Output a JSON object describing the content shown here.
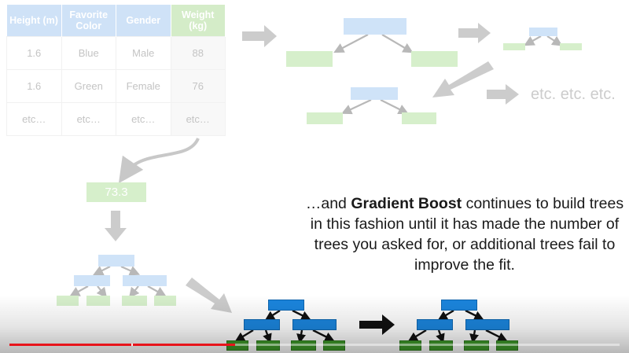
{
  "table": {
    "headers": [
      "Height (m)",
      "Favorite Color",
      "Gender",
      "Weight (kg)"
    ],
    "rows": [
      [
        "1.6",
        "Blue",
        "Male",
        "88"
      ],
      [
        "1.6",
        "Green",
        "Female",
        "76"
      ],
      [
        "etc…",
        "etc…",
        "etc…",
        "etc…"
      ]
    ]
  },
  "etc_label": "etc. etc. etc.",
  "initial_prediction": "73.3",
  "description": {
    "before": "…and ",
    "bold": "Gradient Boost",
    "after": " continues to build trees in this fashion until it has made the number of trees you asked for, or additional trees fail to improve the fit."
  },
  "player": {
    "progress": 0.37,
    "chapter_marks": [
      0.2
    ]
  },
  "colors": {
    "faded_blue": "#cfe3f8",
    "faded_green": "#d6efcb",
    "tree_blue": "#1b85dd",
    "tree_green": "#3f9a2a",
    "progress_red": "#e8141b"
  }
}
